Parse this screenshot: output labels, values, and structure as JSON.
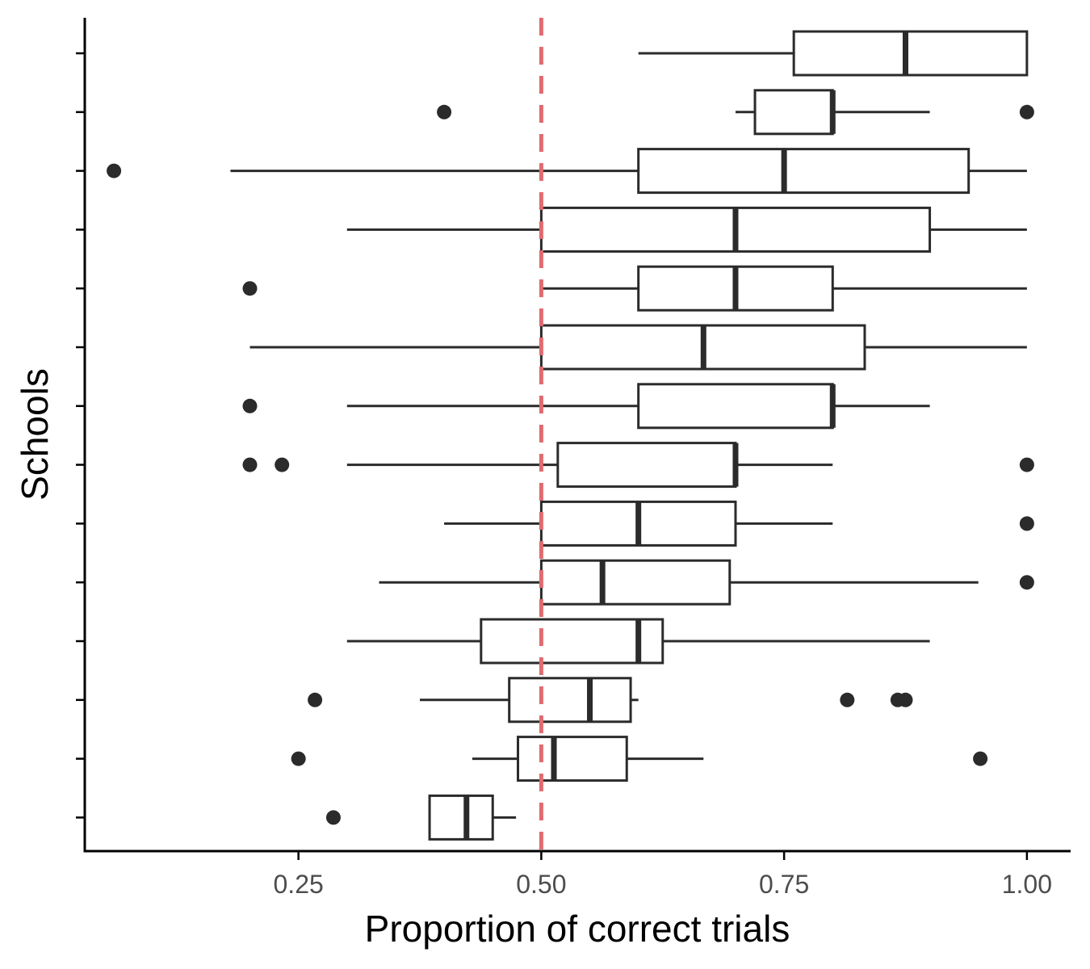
{
  "chart_data": {
    "type": "boxplot",
    "orientation": "horizontal",
    "xlabel": "Proportion of correct trials",
    "ylabel": "Schools",
    "xlim": [
      0.03,
      1.045
    ],
    "xticks": [
      0.25,
      0.5,
      0.75,
      1.0
    ],
    "xtick_labels": [
      "0.25",
      "0.50",
      "0.75",
      "1.00"
    ],
    "grid": false,
    "legend": "none",
    "reference_line": {
      "x": 0.5,
      "style": "dashed",
      "color": "#e06b70"
    },
    "colors": {
      "box_stroke": "#2b2b2b",
      "box_fill": "#ffffff",
      "outlier": "#2b2b2b",
      "reference": "#e06b70"
    },
    "boxes": [
      {
        "whisker_low": 0.6,
        "q1": 0.76,
        "median": 0.875,
        "q3": 1.0,
        "whisker_high": 1.0,
        "outliers": []
      },
      {
        "whisker_low": 0.7,
        "q1": 0.72,
        "median": 0.8,
        "q3": 0.8,
        "whisker_high": 0.9,
        "outliers": [
          0.4,
          1.0
        ]
      },
      {
        "whisker_low": 0.18,
        "q1": 0.6,
        "median": 0.75,
        "q3": 0.94,
        "whisker_high": 1.0,
        "outliers": [
          0.06
        ]
      },
      {
        "whisker_low": 0.3,
        "q1": 0.5,
        "median": 0.7,
        "q3": 0.9,
        "whisker_high": 1.0,
        "outliers": []
      },
      {
        "whisker_low": 0.5,
        "q1": 0.6,
        "median": 0.7,
        "q3": 0.8,
        "whisker_high": 1.0,
        "outliers": [
          0.2
        ]
      },
      {
        "whisker_low": 0.2,
        "q1": 0.5,
        "median": 0.667,
        "q3": 0.833,
        "whisker_high": 1.0,
        "outliers": []
      },
      {
        "whisker_low": 0.3,
        "q1": 0.6,
        "median": 0.8,
        "q3": 0.8,
        "whisker_high": 0.9,
        "outliers": [
          0.2
        ]
      },
      {
        "whisker_low": 0.3,
        "q1": 0.517,
        "median": 0.7,
        "q3": 0.7,
        "whisker_high": 0.8,
        "outliers": [
          0.2,
          0.233,
          1.0
        ]
      },
      {
        "whisker_low": 0.4,
        "q1": 0.5,
        "median": 0.6,
        "q3": 0.7,
        "whisker_high": 0.8,
        "outliers": [
          1.0
        ]
      },
      {
        "whisker_low": 0.333,
        "q1": 0.5,
        "median": 0.563,
        "q3": 0.694,
        "whisker_high": 0.95,
        "outliers": [
          1.0
        ]
      },
      {
        "whisker_low": 0.3,
        "q1": 0.438,
        "median": 0.6,
        "q3": 0.625,
        "whisker_high": 0.9,
        "outliers": []
      },
      {
        "whisker_low": 0.375,
        "q1": 0.467,
        "median": 0.55,
        "q3": 0.592,
        "whisker_high": 0.6,
        "outliers": [
          0.267,
          0.815,
          0.867,
          0.875
        ]
      },
      {
        "whisker_low": 0.429,
        "q1": 0.476,
        "median": 0.513,
        "q3": 0.588,
        "whisker_high": 0.667,
        "outliers": [
          0.25,
          0.952
        ]
      },
      {
        "whisker_low": 0.385,
        "q1": 0.385,
        "median": 0.423,
        "q3": 0.45,
        "whisker_high": 0.474,
        "outliers": [
          0.286
        ]
      }
    ]
  }
}
